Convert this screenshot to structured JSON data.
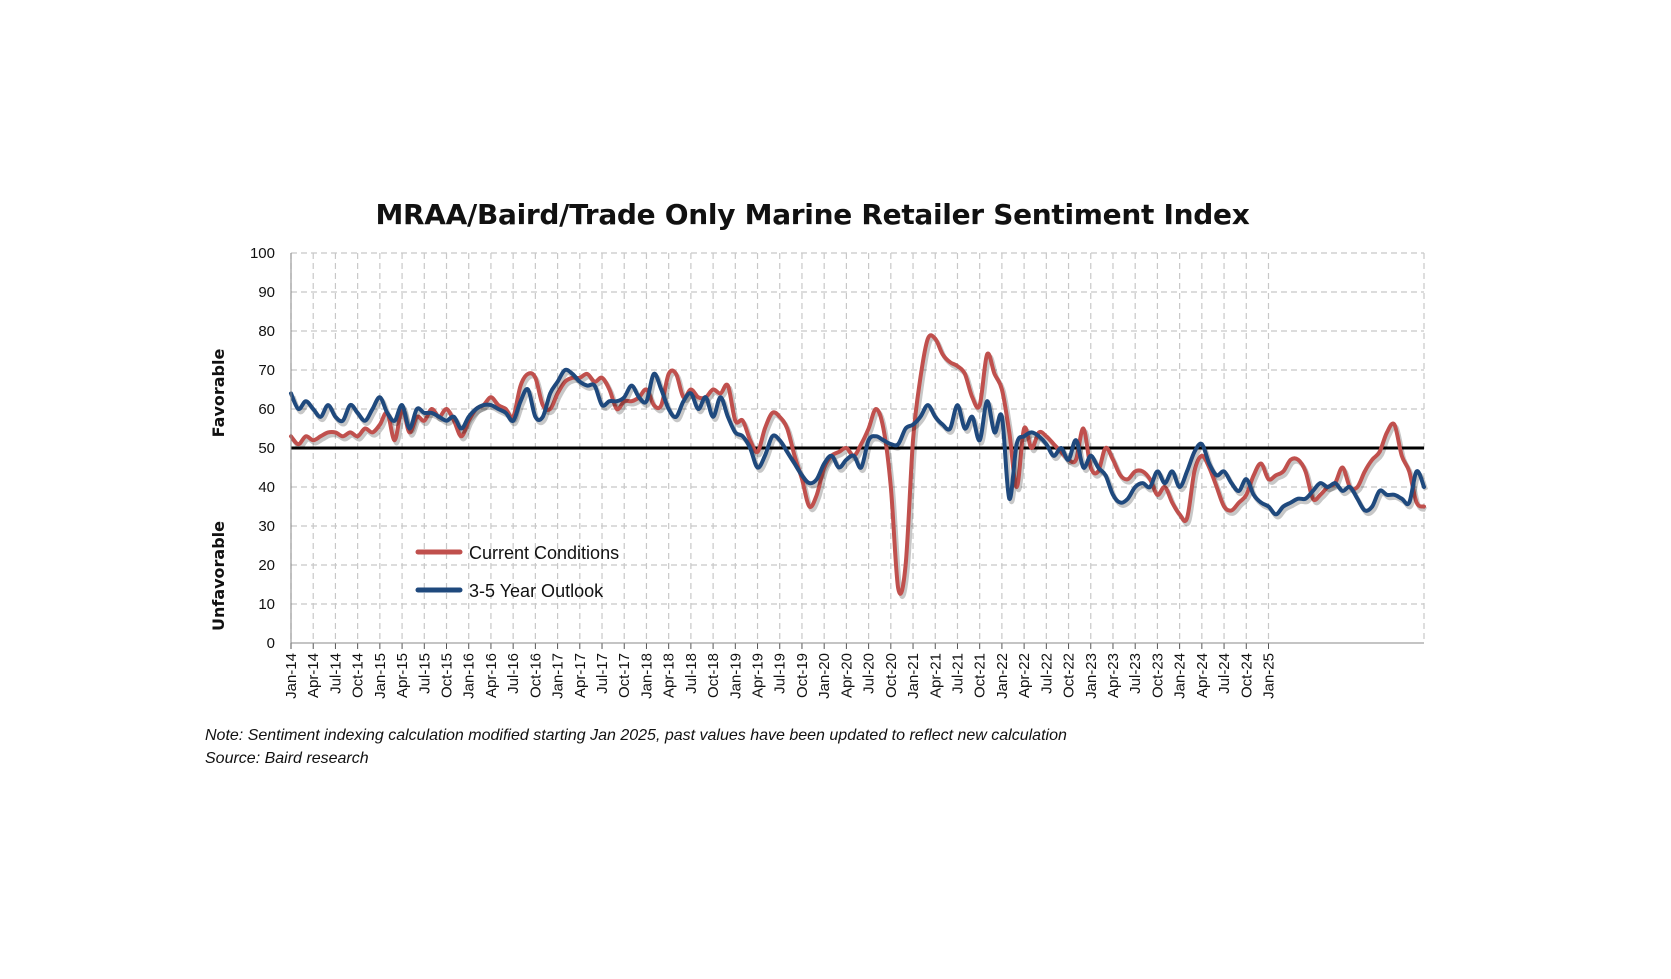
{
  "chart_data": {
    "type": "line",
    "title": "MRAA/Baird/Trade Only Marine Retailer Sentiment Index",
    "ylim": [
      0,
      100
    ],
    "yticks": [
      0,
      10,
      20,
      30,
      40,
      50,
      60,
      70,
      80,
      90,
      100
    ],
    "y_side_labels": {
      "upper": "Favorable",
      "lower": "Unfavorable"
    },
    "reference_line": 50,
    "grid": "dashed",
    "legend_placement": "lower-left",
    "x_tick_labels": [
      "Jan-14",
      "Apr-14",
      "Jul-14",
      "Oct-14",
      "Jan-15",
      "Apr-15",
      "Jul-15",
      "Oct-15",
      "Jan-16",
      "Apr-16",
      "Jul-16",
      "Oct-16",
      "Jan-17",
      "Apr-17",
      "Jul-17",
      "Oct-17",
      "Jan-18",
      "Apr-18",
      "Jul-18",
      "Oct-18",
      "Jan-19",
      "Apr-19",
      "Jul-19",
      "Oct-19",
      "Jan-20",
      "Apr-20",
      "Jul-20",
      "Oct-20",
      "Jan-21",
      "Apr-21",
      "Jul-21",
      "Oct-21",
      "Jan-22",
      "Apr-22",
      "Jul-22",
      "Oct-22",
      "Jan-23",
      "Apr-23",
      "Jul-23",
      "Oct-23",
      "Jan-24",
      "Apr-24",
      "Jul-24",
      "Oct-24",
      "Jan-25"
    ],
    "x_start": "Jan-14",
    "x_end": "Feb-25",
    "series": [
      {
        "name": "Current Conditions",
        "color": "#c0504d",
        "values": [
          53,
          51,
          53,
          52,
          53,
          54,
          54,
          53,
          54,
          53,
          55,
          54,
          56,
          59,
          52,
          60,
          54,
          58,
          57,
          60,
          58,
          60,
          57,
          53,
          57,
          60,
          61,
          63,
          61,
          60,
          58,
          66,
          69,
          68,
          61,
          60,
          64,
          67,
          68,
          68,
          69,
          67,
          68,
          65,
          60,
          62,
          62,
          63,
          65,
          61,
          61,
          69,
          69,
          63,
          65,
          63,
          63,
          65,
          64,
          66,
          57,
          57,
          52,
          49,
          55,
          59,
          58,
          55,
          48,
          42,
          35,
          38,
          45,
          48,
          49,
          50,
          48,
          51,
          55,
          60,
          55,
          40,
          14,
          20,
          52,
          68,
          78,
          78,
          74,
          72,
          71,
          69,
          63,
          61,
          74,
          69,
          65,
          54,
          40,
          55,
          50,
          54,
          53,
          51,
          49,
          47,
          47,
          55,
          45,
          44,
          50,
          47,
          43,
          42,
          44,
          44,
          42,
          38,
          40,
          36,
          33,
          32,
          44,
          48,
          45,
          40,
          35,
          34,
          36,
          38,
          43,
          46,
          42,
          43,
          44,
          47,
          47,
          44,
          37,
          38,
          40,
          41,
          45,
          40,
          40,
          44,
          47,
          49,
          54,
          56,
          48,
          44,
          36,
          35
        ]
      },
      {
        "name": "3-5 Year Outlook",
        "color": "#1f497d",
        "values": [
          64,
          60,
          62,
          60,
          58,
          61,
          58,
          57,
          61,
          59,
          57,
          60,
          63,
          59,
          57,
          61,
          55,
          60,
          59,
          59,
          58,
          57,
          58,
          55,
          58,
          60,
          61,
          61,
          60,
          59,
          57,
          62,
          65,
          58,
          58,
          64,
          67,
          70,
          69,
          67,
          66,
          66,
          61,
          62,
          62,
          63,
          66,
          63,
          62,
          69,
          65,
          60,
          58,
          62,
          64,
          60,
          63,
          58,
          63,
          58,
          54,
          53,
          50,
          45,
          48,
          53,
          52,
          49,
          46,
          43,
          41,
          42,
          46,
          48,
          45,
          47,
          48,
          45,
          52,
          53,
          52,
          51,
          51,
          55,
          56,
          58,
          61,
          58,
          56,
          55,
          61,
          55,
          58,
          52,
          62,
          54,
          58,
          37,
          51,
          53,
          54,
          53,
          51,
          48,
          50,
          47,
          52,
          45,
          48,
          45,
          43,
          38,
          36,
          37,
          40,
          41,
          40,
          44,
          41,
          44,
          40,
          44,
          49,
          51,
          46,
          43,
          44,
          41,
          39,
          42,
          38,
          36,
          35,
          33,
          35,
          36,
          37,
          37,
          39,
          41,
          40,
          41,
          39,
          40,
          37,
          34,
          35,
          39,
          38,
          38,
          37,
          36,
          44,
          40
        ]
      }
    ]
  },
  "notes": {
    "note": "Note: Sentiment indexing calculation modified  starting Jan 2025, past values have been updated to reflect new calculation",
    "source": "Source: Baird research"
  }
}
